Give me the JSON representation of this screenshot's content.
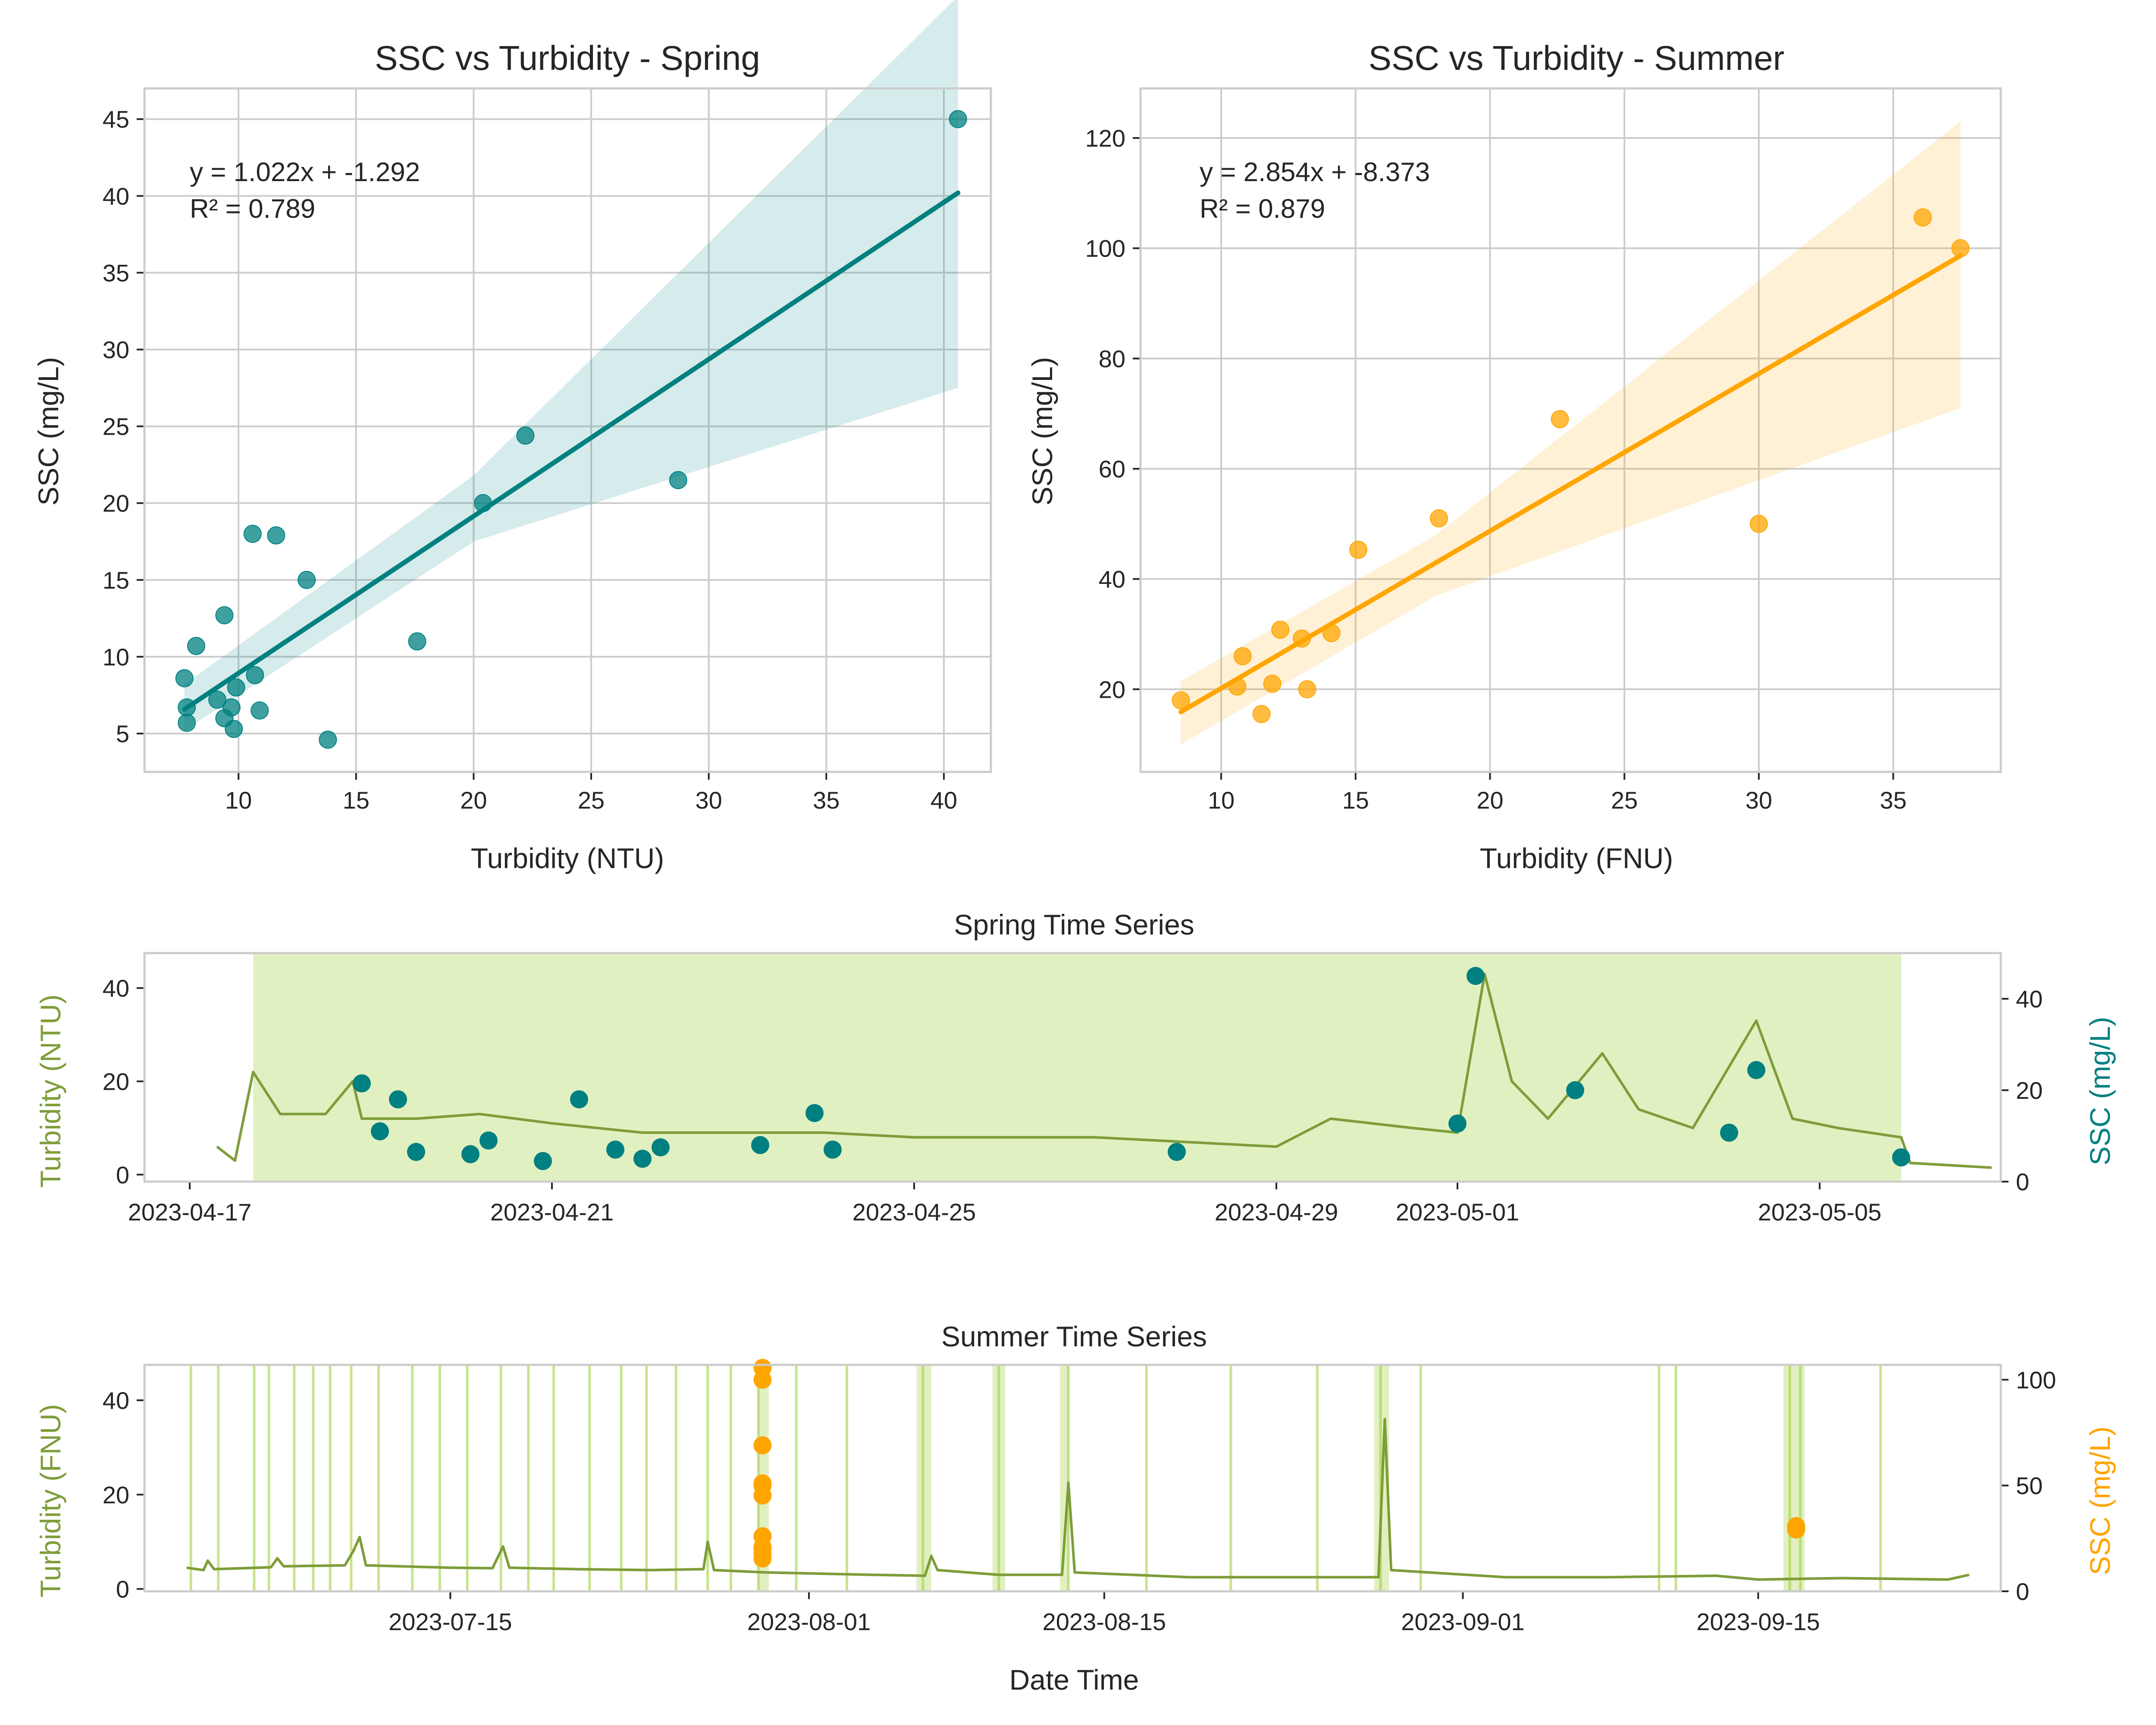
{
  "chart_data": [
    {
      "type": "scatter",
      "title": "SSC vs Turbidity - Spring",
      "xlabel": "Turbidity (NTU)",
      "ylabel": "SSC (mg/L)",
      "xlim": [
        6,
        42
      ],
      "ylim": [
        2.5,
        47
      ],
      "xticks": [
        10,
        15,
        20,
        25,
        30,
        35,
        40
      ],
      "yticks": [
        5,
        10,
        15,
        20,
        25,
        30,
        35,
        40,
        45
      ],
      "grid": true,
      "color": "#008080",
      "annotation": [
        "y = 1.022x + -1.292",
        "R² = 0.789"
      ],
      "points": [
        {
          "x": 7.7,
          "y": 8.6
        },
        {
          "x": 7.8,
          "y": 6.7
        },
        {
          "x": 7.8,
          "y": 5.7
        },
        {
          "x": 8.2,
          "y": 10.7
        },
        {
          "x": 9.1,
          "y": 7.2
        },
        {
          "x": 9.4,
          "y": 12.7
        },
        {
          "x": 9.4,
          "y": 6.0
        },
        {
          "x": 9.7,
          "y": 6.7
        },
        {
          "x": 9.8,
          "y": 5.3
        },
        {
          "x": 9.9,
          "y": 8.0
        },
        {
          "x": 10.6,
          "y": 18.0
        },
        {
          "x": 10.7,
          "y": 8.8
        },
        {
          "x": 10.9,
          "y": 6.5
        },
        {
          "x": 11.6,
          "y": 17.9
        },
        {
          "x": 12.9,
          "y": 15.0
        },
        {
          "x": 13.8,
          "y": 4.6
        },
        {
          "x": 17.6,
          "y": 11.0
        },
        {
          "x": 20.4,
          "y": 20.0
        },
        {
          "x": 22.2,
          "y": 24.4
        },
        {
          "x": 28.7,
          "y": 21.5
        },
        {
          "x": 40.6,
          "y": 45.0
        }
      ],
      "fit": {
        "slope": 1.022,
        "intercept": -1.292,
        "x_range": [
          7.7,
          40.6
        ]
      },
      "ci_band": {
        "x": [
          7.7,
          20.0,
          40.6
        ],
        "lower": [
          5.2,
          17.5,
          27.5
        ],
        "upper": [
          8.2,
          21.8,
          53.0
        ]
      }
    },
    {
      "type": "scatter",
      "title": "SSC vs Turbidity - Summer",
      "xlabel": "Turbidity (FNU)",
      "ylabel": "SSC (mg/L)",
      "xlim": [
        7,
        39
      ],
      "ylim": [
        5,
        129
      ],
      "xticks": [
        10,
        15,
        20,
        25,
        30,
        35
      ],
      "yticks": [
        20,
        40,
        60,
        80,
        100,
        120
      ],
      "grid": true,
      "color": "#ffa500",
      "annotation": [
        "y = 2.854x + -8.373",
        "R² = 0.879"
      ],
      "points": [
        {
          "x": 8.5,
          "y": 18.0
        },
        {
          "x": 10.6,
          "y": 20.5
        },
        {
          "x": 10.8,
          "y": 26.0
        },
        {
          "x": 11.5,
          "y": 15.5
        },
        {
          "x": 11.9,
          "y": 21.0
        },
        {
          "x": 12.2,
          "y": 30.8
        },
        {
          "x": 13.0,
          "y": 29.2
        },
        {
          "x": 13.2,
          "y": 20.0
        },
        {
          "x": 14.1,
          "y": 30.2
        },
        {
          "x": 15.1,
          "y": 45.3
        },
        {
          "x": 18.1,
          "y": 51.0
        },
        {
          "x": 22.6,
          "y": 69.0
        },
        {
          "x": 30.0,
          "y": 50.0
        },
        {
          "x": 36.1,
          "y": 105.6
        },
        {
          "x": 37.5,
          "y": 100.0
        }
      ],
      "fit": {
        "slope": 2.854,
        "intercept": -8.373,
        "x_range": [
          8.5,
          37.5
        ]
      },
      "ci_band": {
        "x": [
          8.5,
          18.0,
          37.5
        ],
        "lower": [
          10.0,
          37.0,
          71.0
        ],
        "upper": [
          21.5,
          48.0,
          123.0
        ]
      }
    },
    {
      "type": "line",
      "title": "Spring Time Series",
      "ylabel_left": "Turbidity (NTU)",
      "ylabel_right": "SSC (mg/L)",
      "x_unit": "days from 2023-04-17",
      "xlim": [
        -0.5,
        20.0
      ],
      "ylim_left": [
        -1.5,
        47.5
      ],
      "ylim_right": [
        0,
        50
      ],
      "yticks_left": [
        0,
        20,
        40
      ],
      "yticks_right": [
        0,
        20,
        40
      ],
      "xtick_labels": [
        {
          "label": "2023-04-17",
          "x": 0.0
        },
        {
          "label": "2023-04-21",
          "x": 4.0
        },
        {
          "label": "2023-04-25",
          "x": 8.0
        },
        {
          "label": "2023-04-29",
          "x": 12.0
        },
        {
          "label": "2023-05-01",
          "x": 14.0
        },
        {
          "label": "2023-05-05",
          "x": 18.0
        }
      ],
      "line_color": "#7e9d3a",
      "ssc_color": "#008080",
      "highlight_color": "#9acd32",
      "turbidity": [
        {
          "x": 0.3,
          "y": 6
        },
        {
          "x": 0.5,
          "y": 3
        },
        {
          "x": 0.7,
          "y": 22
        },
        {
          "x": 1.0,
          "y": 13
        },
        {
          "x": 1.5,
          "y": 13
        },
        {
          "x": 1.8,
          "y": 20
        },
        {
          "x": 1.9,
          "y": 12
        },
        {
          "x": 2.5,
          "y": 12
        },
        {
          "x": 3.2,
          "y": 13
        },
        {
          "x": 4.0,
          "y": 11
        },
        {
          "x": 5.0,
          "y": 9
        },
        {
          "x": 6.0,
          "y": 9
        },
        {
          "x": 7.0,
          "y": 9
        },
        {
          "x": 8.0,
          "y": 8
        },
        {
          "x": 9.0,
          "y": 8
        },
        {
          "x": 10.0,
          "y": 8
        },
        {
          "x": 11.0,
          "y": 7
        },
        {
          "x": 12.0,
          "y": 6
        },
        {
          "x": 12.6,
          "y": 12
        },
        {
          "x": 13.5,
          "y": 10
        },
        {
          "x": 14.0,
          "y": 9
        },
        {
          "x": 14.3,
          "y": 43
        },
        {
          "x": 14.6,
          "y": 20
        },
        {
          "x": 15.0,
          "y": 12
        },
        {
          "x": 15.6,
          "y": 26
        },
        {
          "x": 16.0,
          "y": 14
        },
        {
          "x": 16.6,
          "y": 10
        },
        {
          "x": 17.3,
          "y": 33
        },
        {
          "x": 17.7,
          "y": 12
        },
        {
          "x": 18.2,
          "y": 10
        },
        {
          "x": 18.9,
          "y": 8
        },
        {
          "x": 19.0,
          "y": 2.5
        },
        {
          "x": 19.9,
          "y": 1.5
        }
      ],
      "ssc_points": [
        {
          "x": 1.9,
          "y": 21.5
        },
        {
          "x": 2.1,
          "y": 11
        },
        {
          "x": 2.3,
          "y": 18
        },
        {
          "x": 2.5,
          "y": 6.5
        },
        {
          "x": 3.1,
          "y": 6
        },
        {
          "x": 3.3,
          "y": 9
        },
        {
          "x": 3.9,
          "y": 4.5
        },
        {
          "x": 4.3,
          "y": 18
        },
        {
          "x": 4.7,
          "y": 7
        },
        {
          "x": 5.0,
          "y": 5
        },
        {
          "x": 5.2,
          "y": 7.5
        },
        {
          "x": 6.3,
          "y": 8
        },
        {
          "x": 6.9,
          "y": 15
        },
        {
          "x": 7.1,
          "y": 7
        },
        {
          "x": 10.9,
          "y": 6.5
        },
        {
          "x": 14.0,
          "y": 12.7
        },
        {
          "x": 14.2,
          "y": 45
        },
        {
          "x": 15.3,
          "y": 20
        },
        {
          "x": 17.0,
          "y": 10.7
        },
        {
          "x": 17.3,
          "y": 24.4
        },
        {
          "x": 18.9,
          "y": 5.3
        }
      ],
      "highlight_spans": [
        [
          0.7,
          18.9
        ]
      ]
    },
    {
      "type": "line",
      "title": "Summer Time Series",
      "xlabel": "Date Time",
      "ylabel_left": "Turbidity (FNU)",
      "ylabel_right": "SSC (mg/L)",
      "x_unit": "days from 2023-07-15",
      "xlim": [
        -14.5,
        73.5
      ],
      "ylim_left": [
        -0.5,
        47.5
      ],
      "ylim_right": [
        0,
        107
      ],
      "yticks_left": [
        0,
        20,
        40
      ],
      "yticks_right": [
        0,
        50,
        100
      ],
      "xtick_labels": [
        {
          "label": "2023-07-15",
          "x": 0
        },
        {
          "label": "2023-08-01",
          "x": 17
        },
        {
          "label": "2023-08-15",
          "x": 31
        },
        {
          "label": "2023-09-01",
          "x": 48
        },
        {
          "label": "2023-09-15",
          "x": 62
        }
      ],
      "line_color": "#7e9d3a",
      "ssc_color": "#ffa500",
      "highlight_color": "#9acd32",
      "turbidity": [
        {
          "x": -12.5,
          "y": 4.5
        },
        {
          "x": -11.7,
          "y": 4.0
        },
        {
          "x": -11.5,
          "y": 6.0
        },
        {
          "x": -11.2,
          "y": 4.2
        },
        {
          "x": -8.5,
          "y": 4.6
        },
        {
          "x": -8.2,
          "y": 6.5
        },
        {
          "x": -7.9,
          "y": 4.8
        },
        {
          "x": -5.0,
          "y": 5.0
        },
        {
          "x": -4.6,
          "y": 8.0
        },
        {
          "x": -4.3,
          "y": 11.0
        },
        {
          "x": -4.0,
          "y": 5.0
        },
        {
          "x": 0,
          "y": 4.5
        },
        {
          "x": 2.0,
          "y": 4.4
        },
        {
          "x": 2.5,
          "y": 9.0
        },
        {
          "x": 2.8,
          "y": 4.5
        },
        {
          "x": 6.0,
          "y": 4.2
        },
        {
          "x": 9.5,
          "y": 4.0
        },
        {
          "x": 12.0,
          "y": 4.2
        },
        {
          "x": 12.2,
          "y": 10.0
        },
        {
          "x": 12.5,
          "y": 4.0
        },
        {
          "x": 15.0,
          "y": 3.5
        },
        {
          "x": 20.0,
          "y": 3.0
        },
        {
          "x": 22.5,
          "y": 2.8
        },
        {
          "x": 22.8,
          "y": 7.0
        },
        {
          "x": 23.1,
          "y": 4.0
        },
        {
          "x": 26.0,
          "y": 3.0
        },
        {
          "x": 29.0,
          "y": 3.0
        },
        {
          "x": 29.3,
          "y": 22.5
        },
        {
          "x": 29.6,
          "y": 3.5
        },
        {
          "x": 35.0,
          "y": 2.5
        },
        {
          "x": 40.0,
          "y": 2.5
        },
        {
          "x": 44.0,
          "y": 2.5
        },
        {
          "x": 44.3,
          "y": 36.0
        },
        {
          "x": 44.6,
          "y": 4.0
        },
        {
          "x": 50.0,
          "y": 2.5
        },
        {
          "x": 55.0,
          "y": 2.5
        },
        {
          "x": 60.0,
          "y": 2.8
        },
        {
          "x": 62.0,
          "y": 2.0
        },
        {
          "x": 66.0,
          "y": 2.3
        },
        {
          "x": 71.0,
          "y": 2.0
        },
        {
          "x": 72.0,
          "y": 3.0
        }
      ],
      "ssc_points": [
        {
          "x": 14.8,
          "y": 15.5
        },
        {
          "x": 14.8,
          "y": 18.0
        },
        {
          "x": 14.8,
          "y": 20.0
        },
        {
          "x": 14.8,
          "y": 20.5
        },
        {
          "x": 14.8,
          "y": 21.0
        },
        {
          "x": 14.8,
          "y": 26.0
        },
        {
          "x": 14.8,
          "y": 45.3
        },
        {
          "x": 14.8,
          "y": 50.0
        },
        {
          "x": 14.8,
          "y": 51.0
        },
        {
          "x": 14.8,
          "y": 69.0
        },
        {
          "x": 14.8,
          "y": 100.0
        },
        {
          "x": 14.8,
          "y": 105.6
        },
        {
          "x": 63.8,
          "y": 29.2
        },
        {
          "x": 63.8,
          "y": 30.2
        },
        {
          "x": 63.8,
          "y": 30.8
        }
      ],
      "highlight_lines": [
        -12.3,
        -11.0,
        -9.3,
        -8.6,
        -7.4,
        -6.5,
        -5.7,
        -4.7,
        -3.4,
        -1.8,
        -0.5,
        0.8,
        2.4,
        3.7,
        4.9,
        6.6,
        8.1,
        9.3,
        10.7,
        12.2,
        13.3,
        14.6,
        16.4,
        18.8,
        22.4,
        26.0,
        29.3,
        33.0,
        37.0,
        41.1,
        44.1,
        46.0,
        57.3,
        58.1,
        63.5,
        64.0,
        67.8
      ],
      "highlight_spans": [
        [
          14.6,
          15.1
        ],
        [
          22.1,
          22.8
        ],
        [
          25.7,
          26.3
        ],
        [
          28.9,
          29.3
        ],
        [
          43.8,
          44.5
        ],
        [
          63.2,
          64.2
        ]
      ]
    }
  ]
}
